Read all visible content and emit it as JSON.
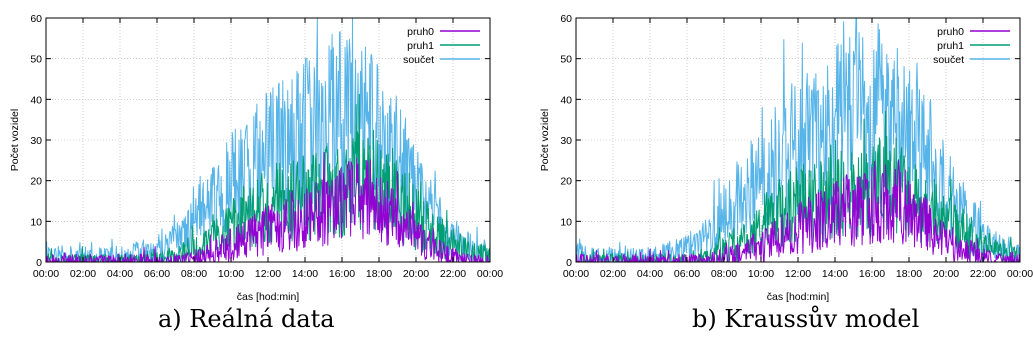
{
  "panels": [
    {
      "caption": "a) Reálná data",
      "chart_data": {
        "type": "line",
        "xlabel": "čas [hod:min]",
        "ylabel": "Počet vozidel",
        "ylim": [
          0,
          60
        ],
        "yticks": [
          "0",
          "10",
          "20",
          "30",
          "40",
          "50",
          "60"
        ],
        "xticks": [
          "00:00",
          "02:00",
          "04:00",
          "06:00",
          "08:00",
          "10:00",
          "12:00",
          "14:00",
          "16:00",
          "18:00",
          "20:00",
          "22:00",
          "00:00"
        ],
        "xlim_hours": [
          0,
          24
        ],
        "legend_position": "top-right",
        "grid": true,
        "series": [
          {
            "name": "pruh0",
            "color": "#9400d3",
            "x_hours": [
              0,
              2,
              4,
              6,
              7,
              8,
              9,
              10,
              11,
              12,
              13,
              14,
              15,
              16,
              17,
              18,
              19,
              20,
              21,
              22,
              23,
              24
            ],
            "values": [
              0,
              0,
              0,
              0,
              0,
              1,
              2,
              4,
              6,
              8,
              9,
              11,
              12,
              14,
              16,
              14,
              10,
              6,
              3,
              1,
              0,
              0
            ]
          },
          {
            "name": "pruh1",
            "color": "#009e73",
            "x_hours": [
              0,
              2,
              4,
              6,
              7,
              8,
              9,
              10,
              11,
              12,
              13,
              14,
              15,
              16,
              17,
              18,
              19,
              20,
              21,
              22,
              23,
              24
            ],
            "values": [
              0,
              0,
              0,
              0,
              1,
              3,
              5,
              9,
              12,
              14,
              15,
              16,
              17,
              18,
              20,
              18,
              15,
              11,
              7,
              4,
              2,
              1
            ]
          },
          {
            "name": "součet",
            "color": "#56b4e9",
            "x_hours": [
              0,
              2,
              4,
              6,
              7,
              8,
              9,
              10,
              11,
              12,
              13,
              14,
              15,
              16,
              17,
              18,
              19,
              20,
              21,
              22,
              23,
              24
            ],
            "values": [
              2,
              1,
              1,
              3,
              5,
              10,
              15,
              19,
              23,
              26,
              28,
              31,
              34,
              37,
              36,
              32,
              25,
              17,
              11,
              6,
              3,
              2
            ]
          }
        ]
      }
    },
    {
      "caption": "b) Kraussův model",
      "chart_data": {
        "type": "line",
        "xlabel": "čas [hod:min]",
        "ylabel": "Počet vozidel",
        "ylim": [
          0,
          60
        ],
        "yticks": [
          "0",
          "10",
          "20",
          "30",
          "40",
          "50",
          "60"
        ],
        "xticks": [
          "00:00",
          "02:00",
          "04:00",
          "06:00",
          "08:00",
          "10:00",
          "12:00",
          "14:00",
          "16:00",
          "18:00",
          "20:00",
          "22:00",
          "00:00"
        ],
        "xlim_hours": [
          0,
          24
        ],
        "legend_position": "top-right",
        "grid": true,
        "series": [
          {
            "name": "pruh0",
            "color": "#9400d3",
            "x_hours": [
              0,
              2,
              4,
              6,
              7,
              8,
              9,
              10,
              11,
              12,
              13,
              14,
              15,
              16,
              17,
              18,
              19,
              20,
              21,
              22,
              23,
              24
            ],
            "values": [
              0,
              0,
              0,
              0,
              0,
              1,
              2,
              4,
              6,
              8,
              10,
              12,
              13,
              14,
              15,
              13,
              9,
              5,
              3,
              1,
              0,
              0
            ]
          },
          {
            "name": "pruh1",
            "color": "#009e73",
            "x_hours": [
              0,
              2,
              4,
              6,
              7,
              8,
              9,
              10,
              11,
              12,
              13,
              14,
              15,
              16,
              17,
              18,
              19,
              20,
              21,
              22,
              23,
              24
            ],
            "values": [
              0,
              0,
              0,
              0,
              1,
              3,
              5,
              9,
              12,
              14,
              15,
              16,
              17,
              18,
              19,
              17,
              14,
              10,
              7,
              4,
              2,
              1
            ]
          },
          {
            "name": "součet",
            "color": "#56b4e9",
            "x_hours": [
              0,
              2,
              4,
              6,
              7,
              8,
              9,
              10,
              11,
              12,
              13,
              14,
              15,
              16,
              17,
              18,
              19,
              20,
              21,
              22,
              23,
              24
            ],
            "values": [
              2,
              1,
              1,
              3,
              6,
              11,
              16,
              21,
              25,
              28,
              30,
              33,
              35,
              36,
              35,
              31,
              24,
              17,
              11,
              6,
              3,
              2
            ]
          }
        ]
      }
    }
  ]
}
